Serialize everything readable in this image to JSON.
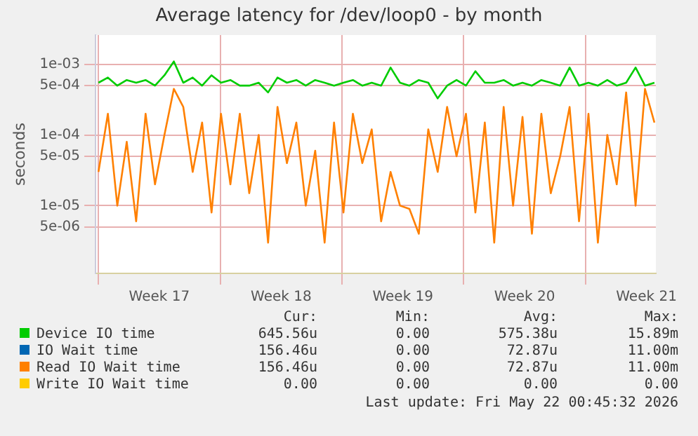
{
  "chart_data": {
    "type": "line",
    "title": "Average latency for /dev/loop0 - by month",
    "ylabel": "seconds",
    "x": [
      "2026-04-20T00:00",
      "2026-04-20T13:00",
      "2026-04-21T02:00",
      "2026-04-21T15:00",
      "2026-04-22T04:00",
      "2026-04-22T17:00",
      "2026-04-23T06:00",
      "2026-04-23T19:00",
      "2026-04-24T08:00",
      "2026-04-24T21:00",
      "2026-04-25T10:00",
      "2026-04-25T23:00",
      "2026-04-26T12:00",
      "2026-04-27T01:00",
      "2026-04-27T14:00",
      "2026-04-28T03:00",
      "2026-04-28T16:00",
      "2026-04-29T05:00",
      "2026-04-29T18:00",
      "2026-04-30T07:00",
      "2026-04-30T20:00",
      "2026-05-01T09:00",
      "2026-05-01T22:00",
      "2026-05-02T11:00",
      "2026-05-03T00:00",
      "2026-05-03T13:00",
      "2026-05-04T02:00",
      "2026-05-04T15:00",
      "2026-05-05T04:00",
      "2026-05-05T17:00",
      "2026-05-06T06:00",
      "2026-05-06T19:00",
      "2026-05-07T08:00",
      "2026-05-07T21:00",
      "2026-05-08T10:00",
      "2026-05-08T23:00",
      "2026-05-09T12:00",
      "2026-05-10T01:00",
      "2026-05-10T14:00",
      "2026-05-11T03:00",
      "2026-05-11T16:00",
      "2026-05-12T05:00",
      "2026-05-12T18:00",
      "2026-05-13T07:00",
      "2026-05-13T20:00",
      "2026-05-14T09:00",
      "2026-05-14T22:00",
      "2026-05-15T11:00",
      "2026-05-16T00:00",
      "2026-05-16T13:00",
      "2026-05-17T02:00",
      "2026-05-17T15:00",
      "2026-05-18T04:00",
      "2026-05-18T17:00",
      "2026-05-19T06:00",
      "2026-05-19T19:00",
      "2026-05-20T08:00",
      "2026-05-20T21:00",
      "2026-05-21T10:00",
      "2026-05-21T23:00"
    ],
    "series": [
      {
        "name": "Device IO time",
        "color": "#00cc00",
        "values": [
          0.00055,
          0.00065,
          0.0005,
          0.0006,
          0.00055,
          0.0006,
          0.0005,
          0.0007,
          0.0011,
          0.00055,
          0.00065,
          0.0005,
          0.0007,
          0.00055,
          0.0006,
          0.0005,
          0.0005,
          0.00055,
          0.0004,
          0.00065,
          0.00055,
          0.0006,
          0.0005,
          0.0006,
          0.00055,
          0.0005,
          0.00055,
          0.0006,
          0.0005,
          0.00055,
          0.0005,
          0.0009,
          0.00055,
          0.0005,
          0.0006,
          0.00055,
          0.00033,
          0.0005,
          0.0006,
          0.0005,
          0.0008,
          0.00055,
          0.00055,
          0.0006,
          0.0005,
          0.00055,
          0.0005,
          0.0006,
          0.00055,
          0.0005,
          0.0009,
          0.0005,
          0.00055,
          0.0005,
          0.0006,
          0.0005,
          0.00055,
          0.0009,
          0.0005,
          0.00055
        ]
      },
      {
        "name": "IO Wait time",
        "color": "#0066b3",
        "values": [
          null,
          null,
          null,
          null,
          null,
          null,
          null,
          null,
          null,
          null,
          null,
          null,
          null,
          null,
          null,
          null,
          null,
          null,
          null,
          null,
          null,
          null,
          null,
          null,
          null,
          null,
          null,
          null,
          null,
          null,
          null,
          null,
          null,
          null,
          null,
          null,
          null,
          null,
          null,
          null,
          null,
          null,
          null,
          null,
          null,
          null,
          null,
          null,
          null,
          null,
          null,
          null,
          null,
          null,
          null,
          null,
          null,
          null,
          null,
          null
        ]
      },
      {
        "name": "Read IO Wait time",
        "color": "#ff8000",
        "values": [
          3e-05,
          0.0002,
          1e-05,
          8e-05,
          6e-06,
          0.0002,
          2e-05,
          0.0001,
          0.00045,
          0.00025,
          3e-05,
          0.00015,
          8e-06,
          0.0002,
          2e-05,
          0.0002,
          1.5e-05,
          0.0001,
          3e-06,
          0.00025,
          4e-05,
          0.00015,
          1e-05,
          6e-05,
          3e-06,
          0.00015,
          8e-06,
          0.0002,
          4e-05,
          0.00012,
          6e-06,
          3e-05,
          1e-05,
          9e-06,
          4e-06,
          0.00012,
          3e-05,
          0.00025,
          5e-05,
          0.0002,
          8e-06,
          0.00015,
          3e-06,
          0.00025,
          1e-05,
          0.00018,
          4e-06,
          0.0002,
          1.5e-05,
          5e-05,
          0.00025,
          6e-06,
          0.0002,
          3e-06,
          0.0001,
          2e-05,
          0.0004,
          1e-05,
          0.00045,
          0.00015
        ]
      },
      {
        "name": "Write IO Wait time",
        "color": "#ffcc00",
        "values": [
          null,
          null,
          null,
          null,
          null,
          null,
          null,
          null,
          null,
          null,
          null,
          null,
          null,
          null,
          null,
          null,
          null,
          null,
          null,
          null,
          null,
          null,
          null,
          null,
          null,
          null,
          null,
          null,
          null,
          null,
          null,
          null,
          null,
          null,
          null,
          null,
          null,
          null,
          null,
          null,
          null,
          null,
          null,
          null,
          null,
          null,
          null,
          null,
          null,
          null,
          null,
          null,
          null,
          null,
          null,
          null,
          null,
          null,
          null,
          null
        ]
      }
    ],
    "log": "y",
    "xlim": [
      "2026-04-19T20:00",
      "2026-05-22T01:00"
    ],
    "ylim": [
      1.1e-06,
      0.0026
    ],
    "xticks": [
      {
        "value": "2026-04-20",
        "label": null
      },
      {
        "value": "2026-04-23T12:00",
        "label": "Week 17"
      },
      {
        "value": "2026-04-27",
        "label": null
      },
      {
        "value": "2026-04-30T12:00",
        "label": "Week 18"
      },
      {
        "value": "2026-05-04",
        "label": null
      },
      {
        "value": "2026-05-07T12:00",
        "label": "Week 19"
      },
      {
        "value": "2026-05-11",
        "label": null
      },
      {
        "value": "2026-05-14T12:00",
        "label": "Week 20"
      },
      {
        "value": "2026-05-18",
        "label": null
      },
      {
        "value": "2026-05-21T12:00",
        "label": "Week 21"
      }
    ],
    "yticks": [
      {
        "value": 5e-06,
        "label": "5e-06"
      },
      {
        "value": 1e-05,
        "label": "1e-05"
      },
      {
        "value": 5e-05,
        "label": "5e-05"
      },
      {
        "value": 0.0001,
        "label": "1e-04"
      },
      {
        "value": 0.0005,
        "label": "5e-04"
      },
      {
        "value": 0.001,
        "label": "1e-03"
      }
    ],
    "grid": true,
    "legend": "bottom",
    "annotations": [
      "Cur:",
      "Min:",
      "Avg:",
      "Max:",
      "645.56u",
      "0.00",
      "575.38u",
      "15.89m",
      "156.46u",
      "0.00",
      "72.87u",
      "11.00m",
      "156.46u",
      "0.00",
      "72.87u",
      "11.00m",
      "0.00",
      "0.00",
      "0.00",
      "0.00",
      "Last update: Fri May 22 00:45:32 2026"
    ]
  }
}
